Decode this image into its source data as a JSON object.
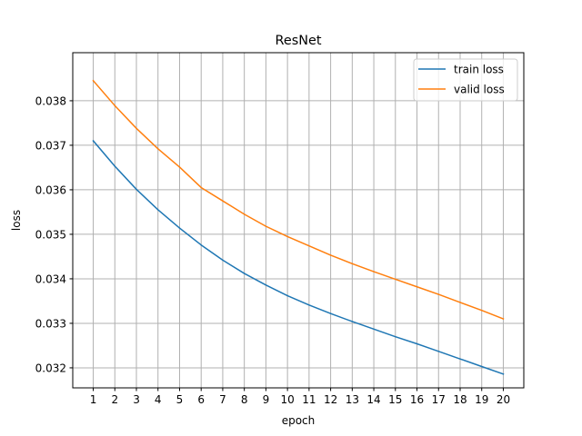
{
  "chart_data": {
    "type": "line",
    "title": "ResNet",
    "xlabel": "epoch",
    "ylabel": "loss",
    "x": [
      1,
      2,
      3,
      4,
      5,
      6,
      7,
      8,
      9,
      10,
      11,
      12,
      13,
      14,
      15,
      16,
      17,
      18,
      19,
      20
    ],
    "xlim": [
      0.05,
      20.95
    ],
    "ylim": [
      0.03155,
      0.03908
    ],
    "yticks": [
      0.032,
      0.033,
      0.034,
      0.035,
      0.036,
      0.037,
      0.038
    ],
    "ytick_labels": [
      "0.032",
      "0.033",
      "0.034",
      "0.035",
      "0.036",
      "0.037",
      "0.038"
    ],
    "grid": true,
    "legend_position": "top-right",
    "series": [
      {
        "name": "train loss",
        "color": "#1f77b4",
        "values": [
          0.0371,
          0.03653,
          0.03601,
          0.03555,
          0.03514,
          0.03476,
          0.03442,
          0.03412,
          0.03386,
          0.03362,
          0.03341,
          0.03322,
          0.03304,
          0.03287,
          0.0327,
          0.03254,
          0.03237,
          0.0322,
          0.03203,
          0.03186
        ]
      },
      {
        "name": "valid loss",
        "color": "#ff7f0e",
        "values": [
          0.03845,
          0.03789,
          0.03738,
          0.03692,
          0.03651,
          0.03605,
          0.03575,
          0.03545,
          0.03518,
          0.03495,
          0.03474,
          0.03453,
          0.03434,
          0.03416,
          0.03399,
          0.03382,
          0.03365,
          0.03347,
          0.03329,
          0.0331
        ]
      }
    ]
  }
}
